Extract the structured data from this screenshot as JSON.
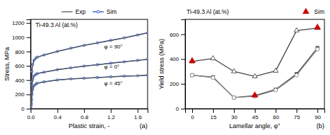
{
  "chart_data": [
    {
      "type": "line",
      "title": "Ti-49.3 Al (at.%)",
      "x_label": "Plastic strain, -",
      "y_label": "Stress, MPa",
      "panel_label": "(a)",
      "x": [
        0.0,
        0.005,
        0.01,
        0.015,
        0.02,
        0.03,
        0.05,
        0.08,
        0.1,
        0.2,
        0.4,
        0.6,
        0.8,
        1.0,
        1.2,
        1.4,
        1.6,
        1.75
      ],
      "series": [
        {
          "name": "Sim",
          "color": "#2255cc",
          "marker": "circle-open",
          "values": [
            0,
            80,
            200,
            380,
            520,
            620,
            678,
            710,
            722,
            752,
            802,
            847,
            887,
            922,
            957,
            992,
            1032,
            1062
          ]
        },
        {
          "name": "Sim",
          "color": "#2255cc",
          "marker": "circle-open",
          "values": [
            0,
            50,
            110,
            220,
            330,
            410,
            460,
            482,
            492,
            512,
            547,
            572,
            597,
            617,
            637,
            657,
            677,
            692
          ]
        },
        {
          "name": "Sim",
          "color": "#2255cc",
          "marker": "circle-open",
          "values": [
            0,
            30,
            70,
            130,
            200,
            270,
            320,
            347,
            357,
            377,
            402,
            417,
            427,
            437,
            447,
            457,
            462,
            470
          ]
        },
        {
          "name": "Exp",
          "color": "#555555",
          "values": [
            0,
            80,
            200,
            380,
            520,
            620,
            680,
            710,
            720,
            750,
            800,
            845,
            885,
            920,
            955,
            990,
            1030,
            1060
          ]
        },
        {
          "name": "Exp",
          "color": "#555555",
          "values": [
            0,
            50,
            110,
            220,
            330,
            410,
            460,
            480,
            490,
            510,
            545,
            570,
            595,
            615,
            635,
            655,
            675,
            690
          ]
        },
        {
          "name": "Exp",
          "color": "#555555",
          "values": [
            0,
            30,
            70,
            130,
            200,
            270,
            320,
            345,
            355,
            375,
            400,
            415,
            425,
            435,
            445,
            455,
            460,
            468
          ]
        }
      ],
      "annotations": [
        {
          "text": "φ = 90°",
          "x": 1.1,
          "y": 870
        },
        {
          "text": "φ = 0°",
          "x": 1.1,
          "y": 590
        },
        {
          "text": "φ = 45°",
          "x": 1.1,
          "y": 360
        }
      ],
      "xlim": [
        0.0,
        1.75
      ],
      "ylim": [
        0,
        1250
      ],
      "xticks": [
        {
          "value": 0.0,
          "label": "0.0"
        },
        0.4,
        0.8,
        1.2,
        1.6
      ],
      "yticks": [
        0,
        200,
        400,
        600,
        800,
        1000,
        1200
      ],
      "legend": "top"
    },
    {
      "type": "line",
      "title": "Ti-49.3 Al (at.%)",
      "x_label": "Lamellar angle, φ°",
      "y_label": "Yield stress (MPa)",
      "panel_label": "(b)",
      "x": [
        0,
        15,
        30,
        45,
        60,
        75,
        90
      ],
      "series": [
        {
          "color": "#444444",
          "marker": "square",
          "values": [
            270,
            255,
            90,
            105,
            155,
            280,
            490
          ]
        },
        {
          "color": "#888888",
          "marker": "circle-open",
          "values": [
            270,
            250,
            90,
            100,
            150,
            270,
            480
          ]
        },
        {
          "color": "#444444",
          "marker": "triangle-open",
          "values": [
            380,
            405,
            300,
            260,
            305,
            630,
            650
          ]
        },
        {
          "name": "Sim",
          "type": "scatter",
          "color": "#cc0000",
          "marker": "triangle",
          "x": [
            0,
            45,
            90
          ],
          "values": [
            385,
            108,
            655
          ]
        }
      ],
      "xlim": [
        -5,
        95
      ],
      "ylim": [
        0,
        720
      ],
      "xticks": [
        0,
        15,
        30,
        45,
        60,
        75,
        90
      ],
      "yticks": [
        0,
        200,
        400,
        600
      ],
      "legend": "upper right"
    }
  ]
}
